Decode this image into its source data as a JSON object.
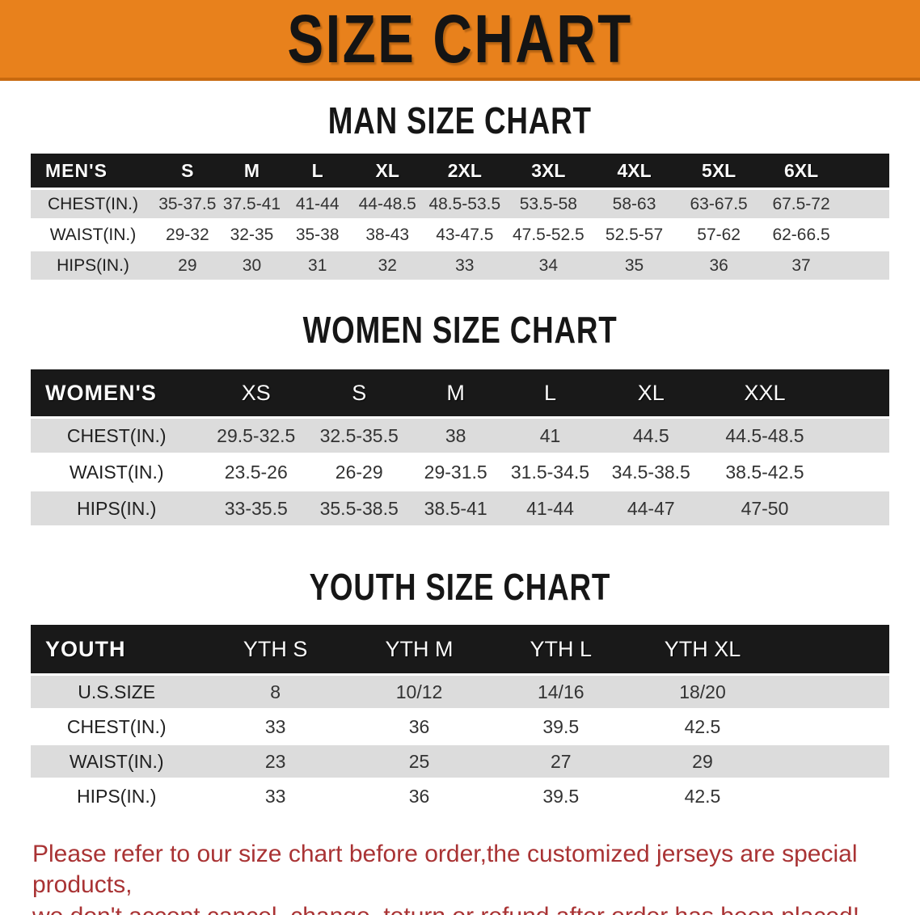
{
  "colors": {
    "banner_bg": "#E8811C",
    "banner_edge": "#C8690F",
    "banner_text": "#141414",
    "header_bg": "#191919",
    "stripe": "#DCDCDC",
    "disclaimer": "#A93334"
  },
  "banner": {
    "title": "SIZE CHART"
  },
  "sections": {
    "men": {
      "title": "MAN SIZE CHART",
      "columns": [
        "MEN'S",
        "S",
        "M",
        "L",
        "XL",
        "2XL",
        "3XL",
        "4XL",
        "5XL",
        "6XL"
      ],
      "rows": [
        [
          "CHEST(IN.)",
          "35-37.5",
          "37.5-41",
          "41-44",
          "44-48.5",
          "48.5-53.5",
          "53.5-58",
          "58-63",
          "63-67.5",
          "67.5-72"
        ],
        [
          "WAIST(IN.)",
          "29-32",
          "32-35",
          "35-38",
          "38-43",
          "43-47.5",
          "47.5-52.5",
          "52.5-57",
          "57-62",
          "62-66.5"
        ],
        [
          "HIPS(IN.)",
          "29",
          "30",
          "31",
          "32",
          "33",
          "34",
          "35",
          "36",
          "37"
        ]
      ]
    },
    "women": {
      "title": "WOMEN SIZE CHART",
      "columns": [
        "WOMEN'S",
        "XS",
        "S",
        "M",
        "L",
        "XL",
        "XXL"
      ],
      "rows": [
        [
          "CHEST(IN.)",
          "29.5-32.5",
          "32.5-35.5",
          "38",
          "41",
          "44.5",
          "44.5-48.5"
        ],
        [
          "WAIST(IN.)",
          "23.5-26",
          "26-29",
          "29-31.5",
          "31.5-34.5",
          "34.5-38.5",
          "38.5-42.5"
        ],
        [
          "HIPS(IN.)",
          "33-35.5",
          "35.5-38.5",
          "38.5-41",
          "41-44",
          "44-47",
          "47-50"
        ]
      ]
    },
    "youth": {
      "title": "YOUTH SIZE CHART",
      "columns": [
        "YOUTH",
        "YTH S",
        "YTH M",
        "YTH L",
        "YTH XL"
      ],
      "rows": [
        [
          "U.S.SIZE",
          "8",
          "10/12",
          "14/16",
          "18/20"
        ],
        [
          "CHEST(IN.)",
          "33",
          "36",
          "39.5",
          "42.5"
        ],
        [
          "WAIST(IN.)",
          "23",
          "25",
          "27",
          "29"
        ],
        [
          "HIPS(IN.)",
          "33",
          "36",
          "39.5",
          "42.5"
        ]
      ]
    }
  },
  "disclaimer": {
    "line1": "Please refer to our size chart before order,the customized jerseys are special products,",
    "line2": "we don't accept cancel, change, teturn or refund after order has been placed!"
  }
}
